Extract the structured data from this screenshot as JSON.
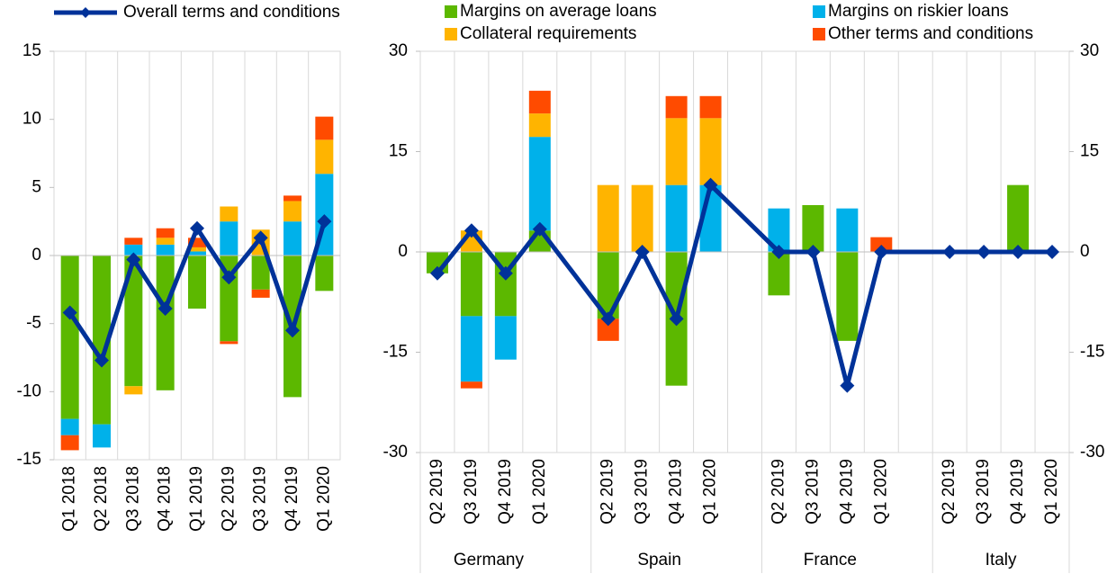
{
  "chart_data": [
    {
      "type": "bar",
      "stacked": true,
      "categories": [
        "Q1 2018",
        "Q2 2018",
        "Q3 2018",
        "Q4 2018",
        "Q1 2019",
        "Q2 2019",
        "Q3 2019",
        "Q4 2019",
        "Q1 2020"
      ],
      "series": [
        {
          "name": "Margins on average loans",
          "color": "#5cb800",
          "values": [
            -12.0,
            -12.4,
            -9.6,
            -9.9,
            -3.9,
            -6.3,
            -2.5,
            -10.4,
            -2.6
          ]
        },
        {
          "name": "Margins on riskier loans",
          "color": "#00b1ea",
          "values": [
            -1.2,
            -1.7,
            0.8,
            0.8,
            0.3,
            2.5,
            0,
            2.5,
            6.0
          ]
        },
        {
          "name": "Collateral requirements",
          "color": "#ffb400",
          "values": [
            0,
            0,
            -0.6,
            0.5,
            0.3,
            1.1,
            1.9,
            1.5,
            2.5
          ]
        },
        {
          "name": "Other terms and conditions",
          "color": "#ff4b00",
          "values": [
            -1.1,
            0,
            0.5,
            0.7,
            0.7,
            -0.2,
            -0.6,
            0.4,
            1.7
          ]
        },
        {
          "name": "Overall terms and conditions",
          "type": "line",
          "color": "#003299",
          "values": [
            -4.2,
            -7.7,
            -0.3,
            -3.9,
            2.0,
            -1.6,
            1.3,
            -5.5,
            2.5
          ]
        }
      ],
      "ylim": [
        -15,
        15
      ],
      "yticks": [
        -15,
        -10,
        -5,
        0,
        5,
        10,
        15
      ]
    },
    {
      "type": "bar",
      "stacked": true,
      "groups": [
        "Germany",
        "Spain",
        "France",
        "Italy"
      ],
      "categories": [
        "Q2 2019",
        "Q3 2019",
        "Q4 2019",
        "Q1 2020",
        "Q2 2019",
        "Q3 2019",
        "Q4 2019",
        "Q1 2020",
        "Q2 2019",
        "Q3 2019",
        "Q4 2019",
        "Q1 2020",
        "Q2 2019",
        "Q3 2019",
        "Q4 2019",
        "Q1 2020"
      ],
      "series": [
        {
          "name": "Margins on average loans",
          "color": "#5cb800",
          "values": [
            -3.2,
            -9.6,
            -9.6,
            3.2,
            -10,
            0,
            -20,
            0,
            -6.5,
            7,
            -13.3,
            0,
            0,
            0,
            10,
            0
          ]
        },
        {
          "name": "Margins on riskier loans",
          "color": "#00b1ea",
          "values": [
            0,
            -9.8,
            -6.5,
            14.0,
            0,
            0,
            10,
            10,
            6.5,
            0,
            6.5,
            0,
            0,
            0,
            0,
            0
          ]
        },
        {
          "name": "Collateral requirements",
          "color": "#ffb400",
          "values": [
            0,
            3.2,
            0,
            3.5,
            10,
            10,
            10,
            10,
            0,
            0,
            0,
            0,
            0,
            0,
            0,
            0
          ]
        },
        {
          "name": "Other terms and conditions",
          "color": "#ff4b00",
          "values": [
            0,
            -1.0,
            0,
            3.4,
            -3.3,
            0,
            3.3,
            3.3,
            0,
            0,
            0,
            2.2,
            0,
            0,
            0,
            0
          ]
        },
        {
          "name": "Overall terms and conditions",
          "type": "line",
          "color": "#003299",
          "values": [
            -3.2,
            3.2,
            -3.2,
            3.4,
            -10,
            0,
            -10,
            10,
            0,
            0,
            -20,
            0,
            0,
            0,
            0,
            0
          ]
        }
      ],
      "ylim": [
        -30,
        30
      ],
      "yticks": [
        -30,
        -15,
        0,
        15,
        30
      ],
      "y2lim": [
        -30,
        30
      ],
      "y2ticks": [
        -30,
        -15,
        0,
        15,
        30
      ]
    }
  ]
}
